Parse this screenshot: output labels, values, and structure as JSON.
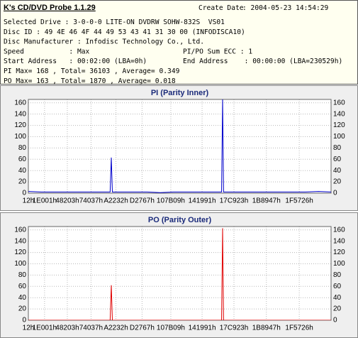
{
  "header": {
    "title": "K's CD/DVD Probe 1.1.29",
    "create_date_label": "Create Date",
    "create_date": ": 2004-05-23 14:54:29",
    "rows": [
      [
        "Selected Drive : 3-0-0-0 LITE-ON DVDRW SOHW-832S  VS01"
      ],
      [
        "Disc ID : 49 4E 46 4F 44 49 53 43 41 31 30 00 (INFODISCA10)"
      ],
      [
        "Disc Manufacturer : Infodisc Technology Co., Ltd."
      ],
      [
        "Speed           : Max",
        "PI/PO Sum ECC : 1"
      ],
      [
        "Start Address   : 00:02:00 (LBA=0h)",
        "End Address    : 00:00:00 (LBA=230529h)"
      ],
      [
        "PI Max= 168 , Total= 36103 , Average= 0.349"
      ],
      [
        "PO Max= 163 , Total= 1870 , Average= 0.018"
      ]
    ]
  },
  "chart_data": [
    {
      "type": "line",
      "title": "PI (Parity Inner)",
      "x": [
        0,
        100000,
        200000,
        300000,
        400000,
        500000,
        600000,
        620000,
        628880,
        637000,
        700000,
        800000,
        900000,
        1000000,
        1100000,
        1200000,
        1300000,
        1400000,
        1465000,
        1472750,
        1480000,
        1500000,
        1600000,
        1700000,
        1800000,
        1900000,
        2000000,
        2100000,
        2200000,
        2295081
      ],
      "series": [
        {
          "name": "PI",
          "color": "#0000cc",
          "values": [
            3,
            2,
            2,
            2,
            2,
            2,
            2,
            2,
            63,
            2,
            2,
            2,
            2,
            1,
            2,
            2,
            2,
            2,
            2,
            168,
            2,
            2,
            2,
            2,
            2,
            2,
            2,
            2,
            3,
            2
          ]
        }
      ],
      "xlim": [
        0,
        2295081
      ],
      "xticks": [
        {
          "value": 18,
          "label": "12h"
        },
        {
          "value": 122881,
          "label": "1E001h"
        },
        {
          "value": 295427,
          "label": "48203h"
        },
        {
          "value": 475191,
          "label": "74037h"
        },
        {
          "value": 664114,
          "label": "A2232h"
        },
        {
          "value": 862055,
          "label": "D2767h"
        },
        {
          "value": 1080073,
          "label": "107B09h"
        },
        {
          "value": 1317265,
          "label": "141991h"
        },
        {
          "value": 1558819,
          "label": "17C923h"
        },
        {
          "value": 1804615,
          "label": "1B8947h"
        },
        {
          "value": 2053926,
          "label": "1F5726h"
        }
      ],
      "ylim": [
        0,
        166
      ],
      "yticks": [
        0,
        20,
        40,
        60,
        80,
        100,
        120,
        140,
        160
      ],
      "grid": true
    },
    {
      "type": "line",
      "title": "PO (Parity Outer)",
      "x": [
        0,
        100000,
        200000,
        300000,
        400000,
        500000,
        600000,
        620000,
        628880,
        637000,
        700000,
        800000,
        900000,
        1000000,
        1100000,
        1200000,
        1300000,
        1400000,
        1465000,
        1472750,
        1480000,
        1500000,
        1600000,
        1700000,
        1800000,
        1900000,
        2000000,
        2100000,
        2200000,
        2295081
      ],
      "series": [
        {
          "name": "PO",
          "color": "#e00000",
          "values": [
            0,
            0,
            0,
            0,
            0,
            0,
            0,
            0,
            62,
            0,
            0,
            0,
            0,
            0,
            0,
            0,
            0,
            0,
            0,
            163,
            0,
            0,
            0,
            0,
            0,
            0,
            0,
            0,
            0,
            0
          ]
        }
      ],
      "xlim": [
        0,
        2295081
      ],
      "xticks": [
        {
          "value": 18,
          "label": "12h"
        },
        {
          "value": 122881,
          "label": "1E001h"
        },
        {
          "value": 295427,
          "label": "48203h"
        },
        {
          "value": 475191,
          "label": "74037h"
        },
        {
          "value": 664114,
          "label": "A2232h"
        },
        {
          "value": 862055,
          "label": "D2767h"
        },
        {
          "value": 1080073,
          "label": "107B09h"
        },
        {
          "value": 1317265,
          "label": "141991h"
        },
        {
          "value": 1558819,
          "label": "17C923h"
        },
        {
          "value": 1804615,
          "label": "1B8947h"
        },
        {
          "value": 2053926,
          "label": "1F5726h"
        }
      ],
      "ylim": [
        0,
        166
      ],
      "yticks": [
        0,
        20,
        40,
        60,
        80,
        100,
        120,
        140,
        160
      ],
      "grid": true
    }
  ]
}
